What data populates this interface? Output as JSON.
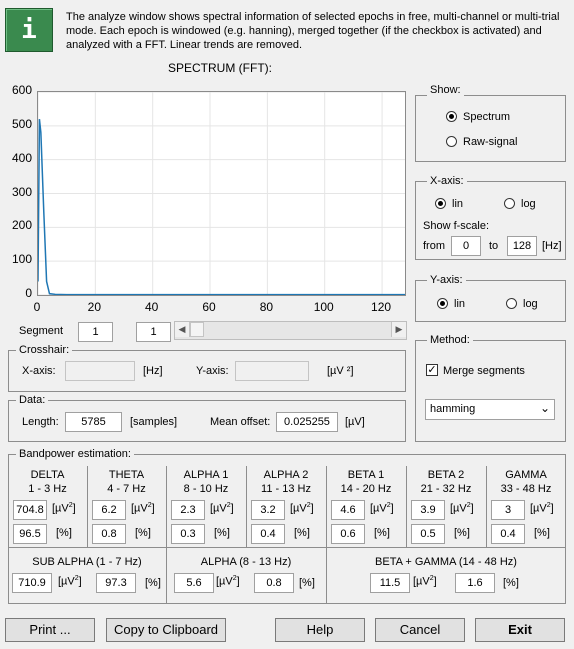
{
  "info": {
    "icon": "info-icon",
    "text": "The analyze window shows spectral information of selected epochs in free, multi-channel or multi-trial mode. Each epoch is windowed (e.g. hanning), merged together (if the checkbox is activated) and analyzed with a FFT. Linear trends are removed."
  },
  "spectrum": {
    "title": "SPECTRUM (FFT):",
    "chart_data": {
      "type": "line",
      "title": "SPECTRUM (FFT):",
      "xlim": [
        0,
        128
      ],
      "ylim": [
        0,
        600
      ],
      "xticks": [
        "0",
        "20",
        "40",
        "60",
        "80",
        "100",
        "120"
      ],
      "yticks": [
        "600",
        "500",
        "400",
        "300",
        "200",
        "100",
        "0"
      ],
      "grid": true,
      "series": [
        {
          "name": "spectrum",
          "color": "#1f77b4",
          "x": [
            0,
            0.5,
            1,
            2,
            3,
            4,
            6,
            10,
            20,
            40,
            60,
            80,
            100,
            128
          ],
          "y": [
            40,
            520,
            480,
            250,
            40,
            4,
            2,
            1,
            1,
            1,
            1,
            1,
            1,
            1
          ]
        }
      ]
    }
  },
  "segment": {
    "label": "Segment",
    "value1": "1",
    "value2": "1"
  },
  "crosshair": {
    "title": "Crosshair:",
    "x_label": "X-axis:",
    "x_unit": "[Hz]",
    "y_label": "Y-axis:",
    "y_unit": "[µV ²]"
  },
  "data": {
    "title": "Data:",
    "length_label": "Length:",
    "length_value": "5785",
    "length_unit": "[samples]",
    "offset_label": "Mean offset:",
    "offset_value": "0.025255",
    "offset_unit": "[µV]"
  },
  "show": {
    "title": "Show:",
    "spectrum_label": "Spectrum",
    "raw_label": "Raw-signal",
    "selected": "spectrum"
  },
  "xaxis": {
    "title": "X-axis:",
    "lin_label": "lin",
    "log_label": "log",
    "fscale_label": "Show f-scale:",
    "from_label": "from",
    "from_value": "0",
    "to_label": "to",
    "to_value": "128",
    "unit": "[Hz]"
  },
  "yaxis": {
    "title": "Y-axis:",
    "lin_label": "lin",
    "log_label": "log"
  },
  "method": {
    "title": "Method:",
    "merge_label": "Merge segments",
    "merge_checked": "✓",
    "window_value": "hamming"
  },
  "bandpower": {
    "title": "Bandpower estimation:",
    "bands": [
      {
        "name": "DELTA",
        "range": "1 - 3 Hz",
        "abs": "704.8",
        "rel": "96.5"
      },
      {
        "name": "THETA",
        "range": "4 - 7 Hz",
        "abs": "6.2",
        "rel": "0.8"
      },
      {
        "name": "ALPHA 1",
        "range": "8 - 10 Hz",
        "abs": "2.3",
        "rel": "0.3"
      },
      {
        "name": "ALPHA 2",
        "range": "11 - 13 Hz",
        "abs": "3.2",
        "rel": "0.4"
      },
      {
        "name": "BETA 1",
        "range": "14 - 20 Hz",
        "abs": "4.6",
        "rel": "0.6"
      },
      {
        "name": "BETA 2",
        "range": "21 - 32 Hz",
        "abs": "3.9",
        "rel": "0.5"
      },
      {
        "name": "GAMMA",
        "range": "33 - 48 Hz",
        "abs": "3",
        "rel": "0.4"
      }
    ],
    "unit_abs": "[µV",
    "unit_sq": "2",
    "unit_close": "]",
    "unit_rel": "[%]",
    "groups": [
      {
        "name": "SUB ALPHA (1 - 7 Hz)",
        "abs": "710.9",
        "rel": "97.3"
      },
      {
        "name": "ALPHA (8 - 13 Hz)",
        "abs": "5.6",
        "rel": "0.8"
      },
      {
        "name": "BETA + GAMMA (14 - 48 Hz)",
        "abs": "11.5",
        "rel": "1.6"
      }
    ]
  },
  "buttons": {
    "print": "Print ...",
    "clipboard": "Copy to Clipboard",
    "help": "Help",
    "cancel": "Cancel",
    "exit": "Exit"
  }
}
